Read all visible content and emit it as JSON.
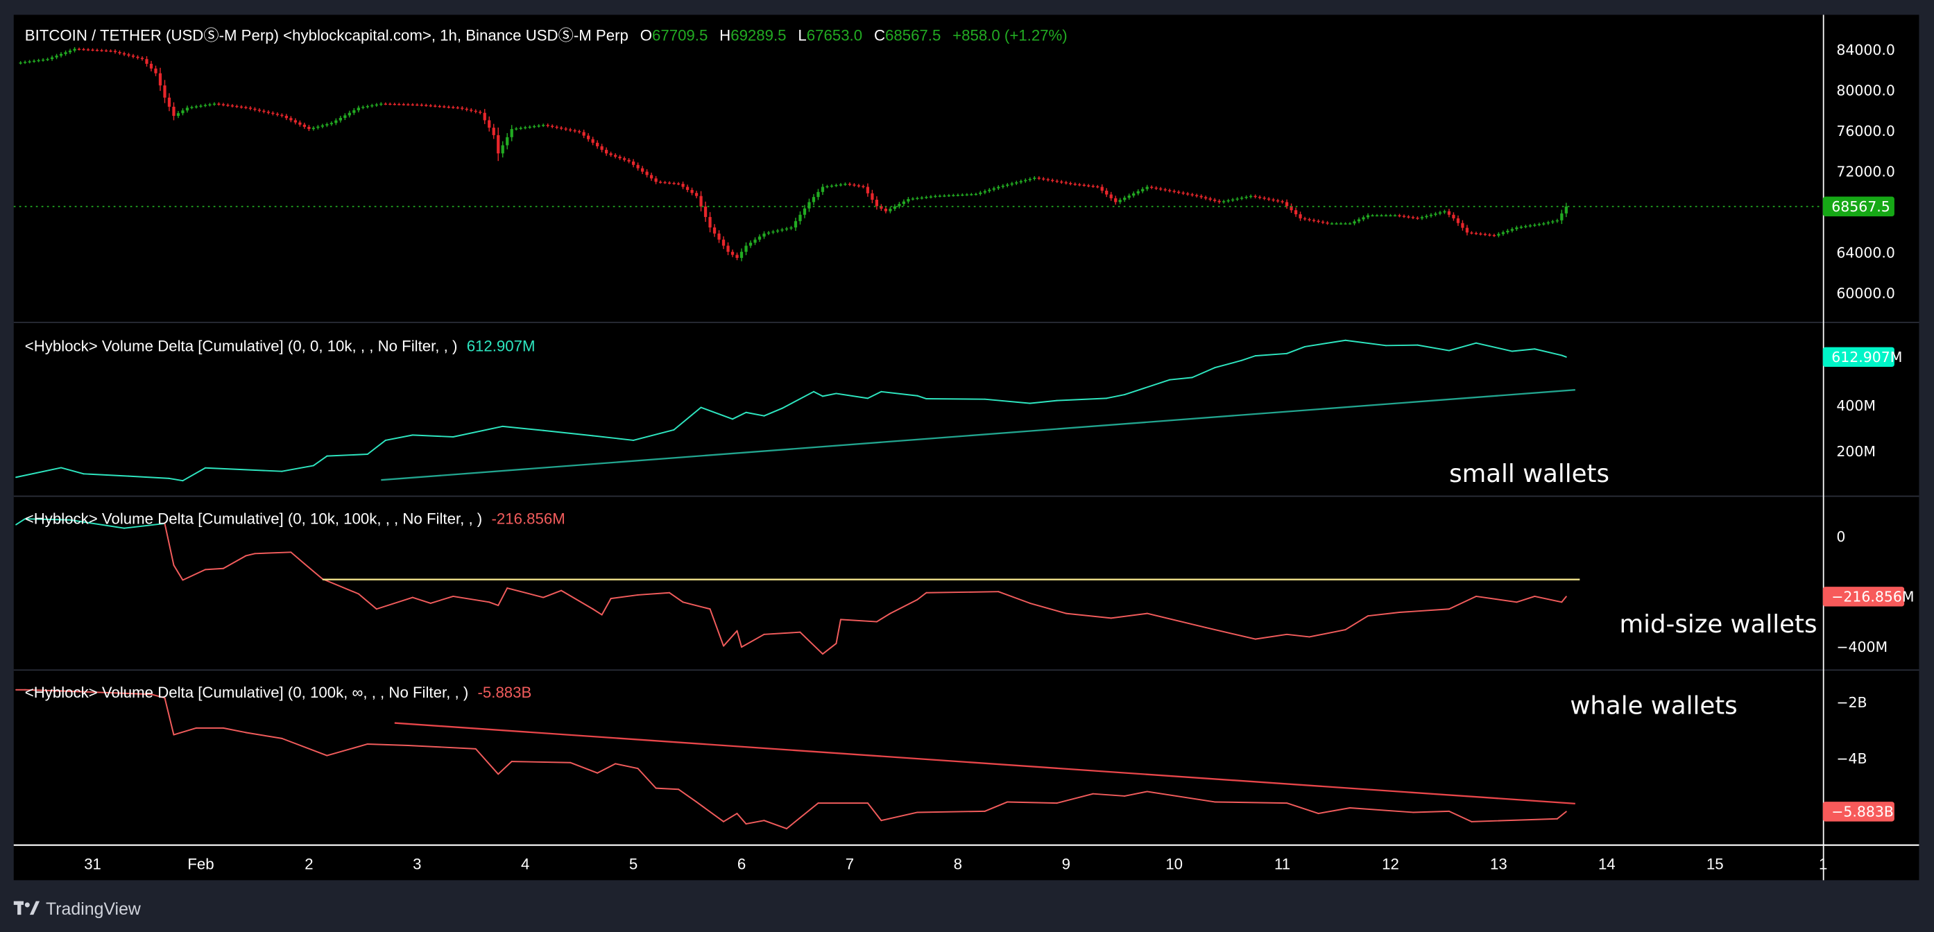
{
  "header": {
    "symbol": "BITCOIN / TETHER (USDⓈ-M Perp) <hyblockcapital.com>, 1h, Binance USDⓈ-M Perp",
    "open_label": "O",
    "open": "67709.5",
    "high_label": "H",
    "high": "69289.5",
    "low_label": "L",
    "low": "67653.0",
    "close_label": "C",
    "close": "68567.5",
    "change": "+858.0 (+1.27%)"
  },
  "panes": {
    "small": {
      "title": "<Hyblock> Volume Delta [Cumulative] (0, 0, 10k, , , No Filter, , )",
      "value": "612.907M",
      "note": "small wallets"
    },
    "mid": {
      "title": "<Hyblock> Volume Delta [Cumulative] (0, 10k, 100k, , , No Filter, , )",
      "value": "-216.856M",
      "note": "mid-size wallets"
    },
    "whale": {
      "title": "<Hyblock> Volume Delta [Cumulative] (0, 100k, ∞, , , No Filter, , )",
      "value": "-5.883B",
      "note": "whale wallets"
    }
  },
  "branding": {
    "logo_icon": "tradingview-logo-icon",
    "name": "TradingView"
  },
  "colors": {
    "up": "#22ab22",
    "down": "#e8262b",
    "positive_line": "#2ee6c0",
    "negative_line": "#f25c5c",
    "small_trend": "#22a58f",
    "mid_level": "#f3e48c",
    "whale_trend": "#e8464a",
    "price_label": "#16a816",
    "small_label": "#00f5c8",
    "negative_label": "#f75a5a",
    "background": "#000000",
    "frame": "#1e222d"
  },
  "chart_data": [
    {
      "type": "candlestick",
      "title": "BITCOIN / TETHER (USDⓈ-M Perp), 1h",
      "last_price": 68567.5,
      "ylim": [
        58000,
        86000
      ],
      "y_ticks": [
        84000,
        80000,
        76000,
        72000,
        64000,
        60000
      ],
      "y_tick_labels": [
        "84000.0",
        "80000.0",
        "76000.0",
        "72000.0",
        "64000.0",
        "60000.0"
      ],
      "last_label": "68567.5",
      "close_series": [
        [
          "Jan 30 07:00",
          82700
        ],
        [
          "Jan 30 14:00",
          83100
        ],
        [
          "Jan 30 20:00",
          84100
        ],
        [
          "Jan 31 04:00",
          83900
        ],
        [
          "Jan 31 11:00",
          83100
        ],
        [
          "Jan 31 14:00",
          81700
        ],
        [
          "Jan 31 16:00",
          79300
        ],
        [
          "Jan 31 18:00",
          77500
        ],
        [
          "Jan 31 21:00",
          78300
        ],
        [
          "Feb 1 03:00",
          78700
        ],
        [
          "Feb 1 10:00",
          78300
        ],
        [
          "Feb 1 18:00",
          77500
        ],
        [
          "Feb 2 00:00",
          76200
        ],
        [
          "Feb 2 05:00",
          76800
        ],
        [
          "Feb 2 11:00",
          78300
        ],
        [
          "Feb 2 16:00",
          78700
        ],
        [
          "Feb 3 00:00",
          78600
        ],
        [
          "Feb 3 09:00",
          78300
        ],
        [
          "Feb 3 14:00",
          77800
        ],
        [
          "Feb 3 17:00",
          75600
        ],
        [
          "Feb 3 18:00",
          73800
        ],
        [
          "Feb 3 21:00",
          76200
        ],
        [
          "Feb 4 04:00",
          76600
        ],
        [
          "Feb 4 12:00",
          75900
        ],
        [
          "Feb 4 18:00",
          73800
        ],
        [
          "Feb 4 23:00",
          73000
        ],
        [
          "Feb 5 05:00",
          71000
        ],
        [
          "Feb 5 10:00",
          70800
        ],
        [
          "Feb 5 14:00",
          69600
        ],
        [
          "Feb 5 17:00",
          66500
        ],
        [
          "Feb 5 21:00",
          64100
        ],
        [
          "Feb 5 23:00",
          63500
        ],
        [
          "Feb 6 01:00",
          64700
        ],
        [
          "Feb 6 05:00",
          65900
        ],
        [
          "Feb 6 11:00",
          66500
        ],
        [
          "Feb 6 15:00",
          69000
        ],
        [
          "Feb 6 18:00",
          70500
        ],
        [
          "Feb 6 23:00",
          70800
        ],
        [
          "Feb 7 03:00",
          70500
        ],
        [
          "Feb 7 06:00",
          68600
        ],
        [
          "Feb 7 08:00",
          68100
        ],
        [
          "Feb 7 13:00",
          69300
        ],
        [
          "Feb 7 19:00",
          69600
        ],
        [
          "Feb 8 04:00",
          69800
        ],
        [
          "Feb 8 09:00",
          70500
        ],
        [
          "Feb 8 17:00",
          71400
        ],
        [
          "Feb 9 01:00",
          70800
        ],
        [
          "Feb 9 07:00",
          70500
        ],
        [
          "Feb 9 11:00",
          69000
        ],
        [
          "Feb 9 18:00",
          70500
        ],
        [
          "Feb 9 23:00",
          70100
        ],
        [
          "Feb 10 05:00",
          69600
        ],
        [
          "Feb 10 10:00",
          69000
        ],
        [
          "Feb 10 17:00",
          69600
        ],
        [
          "Feb 11 00:00",
          69000
        ],
        [
          "Feb 11 04:00",
          67400
        ],
        [
          "Feb 11 10:00",
          66900
        ],
        [
          "Feb 11 15:00",
          66900
        ],
        [
          "Feb 11 19:00",
          67700
        ],
        [
          "Feb 12 01:00",
          67700
        ],
        [
          "Feb 12 06:00",
          67400
        ],
        [
          "Feb 12 12:00",
          68100
        ],
        [
          "Feb 12 14:00",
          67400
        ],
        [
          "Feb 12 17:00",
          66000
        ],
        [
          "Feb 12 23:00",
          65700
        ],
        [
          "Feb 13 04:00",
          66500
        ],
        [
          "Feb 13 10:00",
          66900
        ],
        [
          "Feb 13 13:00",
          67200
        ],
        [
          "Feb 13 15:00",
          68567.5
        ]
      ]
    },
    {
      "type": "line",
      "title": "<Hyblock> Volume Delta [Cumulative] (0, 0, 10k, , , No Filter, , )",
      "unit": "M",
      "y_ticks": [
        400,
        200
      ],
      "y_tick_labels": [
        "400M",
        "200M"
      ],
      "last_label": "612.907M",
      "series": [
        [
          "Jan 30 07:00",
          86
        ],
        [
          "Jan 30 17:00",
          128
        ],
        [
          "Jan 30 22:00",
          101
        ],
        [
          "Jan 31 08:00",
          91
        ],
        [
          "Jan 31 17:00",
          81
        ],
        [
          "Jan 31 20:00",
          71
        ],
        [
          "Feb 1 01:00",
          127
        ],
        [
          "Feb 1 18:00",
          112
        ],
        [
          "Feb 2 01:00",
          137
        ],
        [
          "Feb 2 04:00",
          179
        ],
        [
          "Feb 2 13:00",
          187
        ],
        [
          "Feb 2 17:00",
          248
        ],
        [
          "Feb 2 23:00",
          271
        ],
        [
          "Feb 3 08:00",
          263
        ],
        [
          "Feb 3 19:00",
          309
        ],
        [
          "Feb 4 04:00",
          291
        ],
        [
          "Feb 4 15:00",
          268
        ],
        [
          "Feb 5 00:00",
          248
        ],
        [
          "Feb 5 09:00",
          294
        ],
        [
          "Feb 5 15:00",
          392
        ],
        [
          "Feb 5 22:00",
          341
        ],
        [
          "Feb 6 01:00",
          370
        ],
        [
          "Feb 6 05:00",
          355
        ],
        [
          "Feb 6 09:00",
          388
        ],
        [
          "Feb 6 16:00",
          461
        ],
        [
          "Feb 6 18:00",
          441
        ],
        [
          "Feb 6 21:00",
          453
        ],
        [
          "Feb 7 04:00",
          432
        ],
        [
          "Feb 7 07:00",
          461
        ],
        [
          "Feb 7 15:00",
          443
        ],
        [
          "Feb 7 17:00",
          430
        ],
        [
          "Feb 8 06:00",
          428
        ],
        [
          "Feb 8 16:00",
          410
        ],
        [
          "Feb 8 22:00",
          422
        ],
        [
          "Feb 9 09:00",
          432
        ],
        [
          "Feb 9 13:00",
          448
        ],
        [
          "Feb 9 23:00",
          513
        ],
        [
          "Feb 10 04:00",
          523
        ],
        [
          "Feb 10 09:00",
          566
        ],
        [
          "Feb 10 15:00",
          598
        ],
        [
          "Feb 10 18:00",
          618
        ],
        [
          "Feb 11 01:00",
          628
        ],
        [
          "Feb 11 05:00",
          658
        ],
        [
          "Feb 11 14:00",
          686
        ],
        [
          "Feb 11 23:00",
          663
        ],
        [
          "Feb 12 06:00",
          665
        ],
        [
          "Feb 12 13:00",
          641
        ],
        [
          "Feb 12 19:00",
          674
        ],
        [
          "Feb 13 03:00",
          638
        ],
        [
          "Feb 13 08:00",
          648
        ],
        [
          "Feb 13 14:00",
          620
        ],
        [
          "Feb 13 15:00",
          612.907
        ]
      ],
      "trendline": [
        [
          "Feb 2 16:00",
          74
        ],
        [
          "Feb 13 17:00",
          469
        ]
      ]
    },
    {
      "type": "line",
      "title": "<Hyblock> Volume Delta [Cumulative] (0, 10k, 100k, , , No Filter, , )",
      "unit": "M",
      "y_ticks": [
        0,
        -400
      ],
      "y_tick_labels": [
        "0",
        "−400M"
      ],
      "last_label": "−216.856M",
      "series": [
        [
          "Jan 30 07:00",
          44
        ],
        [
          "Jan 30 09:00",
          65
        ],
        [
          "Jan 30 19:00",
          61
        ],
        [
          "Jan 31 07:00",
          31
        ],
        [
          "Jan 31 16:00",
          48
        ],
        [
          "Jan 31 18:00",
          -103
        ],
        [
          "Jan 31 20:00",
          -157
        ],
        [
          "Feb 1 01:00",
          -119
        ],
        [
          "Feb 1 05:00",
          -115
        ],
        [
          "Feb 1 10:00",
          -69
        ],
        [
          "Feb 1 12:00",
          -61
        ],
        [
          "Feb 1 20:00",
          -56
        ],
        [
          "Feb 1 23:00",
          -98
        ],
        [
          "Feb 2 03:00",
          -153
        ],
        [
          "Feb 2 11:00",
          -207
        ],
        [
          "Feb 2 15:00",
          -262
        ],
        [
          "Feb 2 23:00",
          -220
        ],
        [
          "Feb 3 03:00",
          -241
        ],
        [
          "Feb 3 08:00",
          -216
        ],
        [
          "Feb 3 16:00",
          -237
        ],
        [
          "Feb 3 18:00",
          -249
        ],
        [
          "Feb 3 20:00",
          -186
        ],
        [
          "Feb 4 04:00",
          -220
        ],
        [
          "Feb 4 08:00",
          -195
        ],
        [
          "Feb 4 15:00",
          -262
        ],
        [
          "Feb 4 17:00",
          -283
        ],
        [
          "Feb 4 19:00",
          -224
        ],
        [
          "Feb 5 01:00",
          -211
        ],
        [
          "Feb 5 08:00",
          -203
        ],
        [
          "Feb 5 11:00",
          -237
        ],
        [
          "Feb 5 17:00",
          -262
        ],
        [
          "Feb 5 20:00",
          -396
        ],
        [
          "Feb 5 23:00",
          -341
        ],
        [
          "Feb 6 00:00",
          -400
        ],
        [
          "Feb 6 05:00",
          -354
        ],
        [
          "Feb 6 13:00",
          -346
        ],
        [
          "Feb 6 18:00",
          -425
        ],
        [
          "Feb 6 21:00",
          -387
        ],
        [
          "Feb 6 22:00",
          -300
        ],
        [
          "Feb 7 06:00",
          -308
        ],
        [
          "Feb 7 09:00",
          -278
        ],
        [
          "Feb 7 15:00",
          -228
        ],
        [
          "Feb 7 17:00",
          -203
        ],
        [
          "Feb 8 09:00",
          -199
        ],
        [
          "Feb 8 16:00",
          -241
        ],
        [
          "Feb 9 00:00",
          -278
        ],
        [
          "Feb 9 10:00",
          -295
        ],
        [
          "Feb 9 18:00",
          -278
        ],
        [
          "Feb 10 07:00",
          -329
        ],
        [
          "Feb 10 18:00",
          -371
        ],
        [
          "Feb 11 01:00",
          -354
        ],
        [
          "Feb 11 06:00",
          -363
        ],
        [
          "Feb 11 14:00",
          -337
        ],
        [
          "Feb 11 19:00",
          -287
        ],
        [
          "Feb 12 02:00",
          -274
        ],
        [
          "Feb 12 13:00",
          -262
        ],
        [
          "Feb 12 19:00",
          -216
        ],
        [
          "Feb 13 04:00",
          -237
        ],
        [
          "Feb 13 08:00",
          -216
        ],
        [
          "Feb 13 14:00",
          -237
        ],
        [
          "Feb 13 15:00",
          -216.856
        ]
      ],
      "level_line": [
        [
          "Feb 2 03:00",
          -155
        ],
        [
          "Feb 13 18:00",
          -155
        ]
      ]
    },
    {
      "type": "line",
      "title": "<Hyblock> Volume Delta [Cumulative] (0, 100k, ∞, , , No Filter, , )",
      "unit": "B",
      "y_ticks": [
        -2,
        -4
      ],
      "y_tick_labels": [
        "−2B",
        "−4B"
      ],
      "last_label": "−5.883B",
      "series": [
        [
          "Jan 30 07:00",
          -1.55
        ],
        [
          "Jan 30 09:00",
          -1.55
        ],
        [
          "Jan 30 17:00",
          -1.59
        ],
        [
          "Jan 31 13:00",
          -1.71
        ],
        [
          "Jan 31 16:00",
          -1.84
        ],
        [
          "Jan 31 18:00",
          -3.15
        ],
        [
          "Jan 31 23:00",
          -2.91
        ],
        [
          "Feb 1 05:00",
          -2.91
        ],
        [
          "Feb 1 10:00",
          -3.07
        ],
        [
          "Feb 1 18:00",
          -3.28
        ],
        [
          "Feb 2 04:00",
          -3.89
        ],
        [
          "Feb 2 13:00",
          -3.48
        ],
        [
          "Feb 2 22:00",
          -3.53
        ],
        [
          "Feb 3 13:00",
          -3.65
        ],
        [
          "Feb 3 18:00",
          -4.55
        ],
        [
          "Feb 3 21:00",
          -4.1
        ],
        [
          "Feb 4 10:00",
          -4.14
        ],
        [
          "Feb 4 16:00",
          -4.51
        ],
        [
          "Feb 4 20:00",
          -4.18
        ],
        [
          "Feb 5 01:00",
          -4.35
        ],
        [
          "Feb 5 05:00",
          -5.05
        ],
        [
          "Feb 5 10:00",
          -5.09
        ],
        [
          "Feb 5 14:00",
          -5.54
        ],
        [
          "Feb 5 20:00",
          -6.24
        ],
        [
          "Feb 5 23:00",
          -5.95
        ],
        [
          "Feb 6 01:00",
          -6.32
        ],
        [
          "Feb 6 05:00",
          -6.2
        ],
        [
          "Feb 6 10:00",
          -6.49
        ],
        [
          "Feb 6 17:00",
          -5.58
        ],
        [
          "Feb 7 04:00",
          -5.58
        ],
        [
          "Feb 7 07:00",
          -6.2
        ],
        [
          "Feb 7 15:00",
          -5.91
        ],
        [
          "Feb 8 06:00",
          -5.87
        ],
        [
          "Feb 8 11:00",
          -5.54
        ],
        [
          "Feb 8 22:00",
          -5.58
        ],
        [
          "Feb 9 06:00",
          -5.25
        ],
        [
          "Feb 9 13:00",
          -5.33
        ],
        [
          "Feb 9 18:00",
          -5.17
        ],
        [
          "Feb 10 09:00",
          -5.54
        ],
        [
          "Feb 11 01:00",
          -5.58
        ],
        [
          "Feb 11 08:00",
          -5.95
        ],
        [
          "Feb 11 15:00",
          -5.75
        ],
        [
          "Feb 12 05:00",
          -5.91
        ],
        [
          "Feb 12 13:00",
          -5.87
        ],
        [
          "Feb 12 18:00",
          -6.24
        ],
        [
          "Feb 13 13:00",
          -6.14
        ],
        [
          "Feb 13 15:00",
          -5.883
        ]
      ],
      "trendline": [
        [
          "Feb 2 19:00",
          -2.73
        ],
        [
          "Feb 13 17:00",
          -5.6
        ]
      ]
    }
  ],
  "time_axis": {
    "labels": [
      "31",
      "Feb",
      "2",
      "3",
      "4",
      "5",
      "6",
      "7",
      "8",
      "9",
      "10",
      "11",
      "12",
      "13",
      "14",
      "15",
      "1"
    ]
  }
}
